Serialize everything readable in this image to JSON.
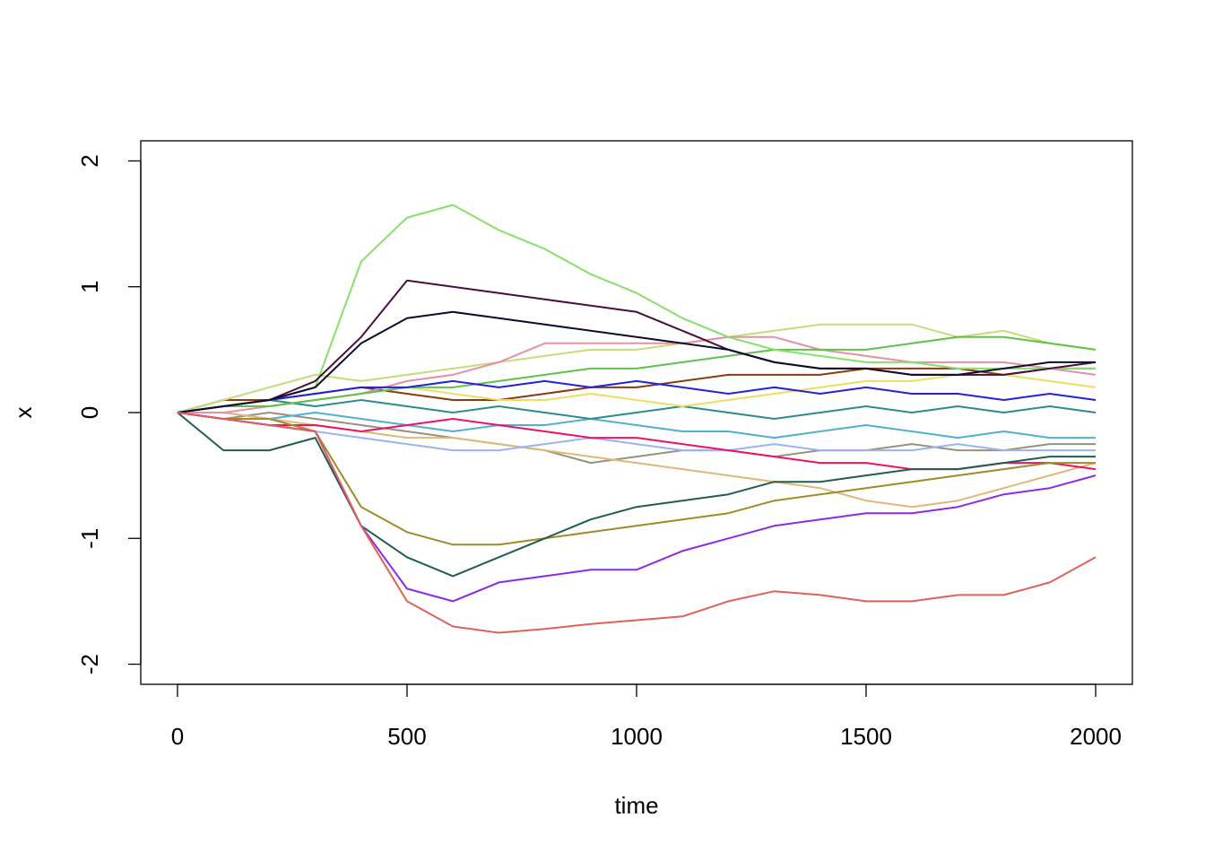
{
  "chart_data": {
    "type": "line",
    "x_label": "time",
    "y_label": "x",
    "x": [
      0,
      100,
      200,
      300,
      400,
      500,
      600,
      700,
      800,
      900,
      1000,
      1100,
      1200,
      1300,
      1400,
      1500,
      1600,
      1700,
      1800,
      1900,
      2000
    ],
    "xlim": [
      -80,
      2080
    ],
    "xticks": [
      0,
      500,
      1000,
      1500,
      2000
    ],
    "ylim": [
      -2.16,
      2.16
    ],
    "yticks": [
      -2,
      -1,
      0,
      1,
      2
    ],
    "series": [
      {
        "color": "#999080",
        "values": [
          0,
          -0.05,
          0,
          -0.05,
          -0.1,
          -0.15,
          -0.2,
          -0.25,
          -0.3,
          -0.4,
          -0.35,
          -0.3,
          -0.3,
          -0.35,
          -0.3,
          -0.3,
          -0.25,
          -0.3,
          -0.3,
          -0.25,
          -0.25
        ]
      },
      {
        "color": "#50b0d0",
        "values": [
          0,
          0,
          -0.05,
          0,
          -0.05,
          -0.1,
          -0.15,
          -0.1,
          -0.1,
          -0.05,
          -0.1,
          -0.15,
          -0.15,
          -0.2,
          -0.15,
          -0.1,
          -0.15,
          -0.2,
          -0.15,
          -0.2,
          -0.2
        ]
      },
      {
        "color": "#2e8b8b",
        "values": [
          0,
          0.05,
          0.1,
          0.05,
          0.1,
          0.05,
          0,
          0.05,
          0,
          -0.05,
          0,
          0.05,
          0,
          -0.05,
          0,
          0.05,
          0,
          0.05,
          0,
          0.05,
          0
        ]
      },
      {
        "color": "#8b3a10",
        "values": [
          0,
          0.1,
          0.1,
          0.15,
          0.2,
          0.15,
          0.1,
          0.1,
          0.15,
          0.2,
          0.2,
          0.25,
          0.3,
          0.3,
          0.3,
          0.35,
          0.35,
          0.35,
          0.3,
          0.35,
          0.35
        ]
      },
      {
        "color": "#e8e060",
        "values": [
          0,
          0.05,
          0.05,
          0.1,
          0.15,
          0.2,
          0.15,
          0.1,
          0.1,
          0.15,
          0.1,
          0.05,
          0.1,
          0.15,
          0.2,
          0.25,
          0.25,
          0.3,
          0.3,
          0.25,
          0.2
        ]
      },
      {
        "color": "#e0b878",
        "values": [
          0,
          0,
          -0.05,
          -0.1,
          -0.15,
          -0.2,
          -0.2,
          -0.25,
          -0.3,
          -0.35,
          -0.4,
          -0.45,
          -0.5,
          -0.55,
          -0.6,
          -0.7,
          -0.75,
          -0.7,
          -0.6,
          -0.5,
          -0.4
        ]
      },
      {
        "color": "#9ab4f0",
        "values": [
          0,
          -0.05,
          -0.1,
          -0.15,
          -0.2,
          -0.25,
          -0.3,
          -0.3,
          -0.25,
          -0.2,
          -0.25,
          -0.3,
          -0.3,
          -0.25,
          -0.3,
          -0.3,
          -0.3,
          -0.25,
          -0.3,
          -0.3,
          -0.3
        ]
      },
      {
        "color": "#c5dc7a",
        "values": [
          0,
          0.1,
          0.2,
          0.3,
          0.25,
          0.3,
          0.35,
          0.4,
          0.45,
          0.5,
          0.5,
          0.55,
          0.6,
          0.65,
          0.7,
          0.7,
          0.7,
          0.6,
          0.65,
          0.55,
          0.5
        ]
      },
      {
        "color": "#e58fa8",
        "values": [
          0,
          0,
          0.05,
          0.1,
          0.15,
          0.25,
          0.3,
          0.4,
          0.55,
          0.55,
          0.55,
          0.55,
          0.6,
          0.6,
          0.5,
          0.45,
          0.4,
          0.4,
          0.4,
          0.35,
          0.3
        ]
      },
      {
        "color": "#5ec24a",
        "values": [
          0,
          0.05,
          0.05,
          0.1,
          0.15,
          0.2,
          0.2,
          0.25,
          0.3,
          0.35,
          0.35,
          0.4,
          0.45,
          0.5,
          0.5,
          0.5,
          0.55,
          0.6,
          0.6,
          0.55,
          0.5
        ]
      },
      {
        "color": "#2222dd",
        "values": [
          0,
          0.05,
          0.1,
          0.15,
          0.2,
          0.2,
          0.25,
          0.2,
          0.25,
          0.2,
          0.25,
          0.2,
          0.15,
          0.2,
          0.15,
          0.2,
          0.15,
          0.15,
          0.1,
          0.15,
          0.1
        ]
      },
      {
        "color": "#ee1166",
        "values": [
          0,
          -0.05,
          -0.1,
          -0.1,
          -0.15,
          -0.1,
          -0.05,
          -0.1,
          -0.15,
          -0.2,
          -0.2,
          -0.25,
          -0.3,
          -0.35,
          -0.4,
          -0.4,
          -0.45,
          -0.45,
          -0.4,
          -0.4,
          -0.45
        ]
      },
      {
        "color": "#86e06b",
        "values": [
          0,
          0.05,
          0.1,
          0.2,
          1.2,
          1.55,
          1.65,
          1.45,
          1.3,
          1.1,
          0.95,
          0.75,
          0.6,
          0.5,
          0.45,
          0.4,
          0.4,
          0.35,
          0.35,
          0.35,
          0.35
        ]
      },
      {
        "color": "#4a0f3f",
        "values": [
          0,
          0.05,
          0.1,
          0.25,
          0.6,
          1.05,
          1.0,
          0.95,
          0.9,
          0.85,
          0.8,
          0.65,
          0.5,
          0.4,
          0.35,
          0.35,
          0.3,
          0.3,
          0.3,
          0.35,
          0.4
        ]
      },
      {
        "color": "#0f0c2e",
        "values": [
          0,
          0.05,
          0.1,
          0.2,
          0.55,
          0.75,
          0.8,
          0.75,
          0.7,
          0.65,
          0.6,
          0.55,
          0.5,
          0.4,
          0.35,
          0.35,
          0.3,
          0.3,
          0.35,
          0.4,
          0.4
        ]
      },
      {
        "color": "#a08a2a",
        "values": [
          0,
          -0.05,
          -0.05,
          -0.15,
          -0.75,
          -0.95,
          -1.05,
          -1.05,
          -1.0,
          -0.95,
          -0.9,
          -0.85,
          -0.8,
          -0.7,
          -0.65,
          -0.6,
          -0.55,
          -0.5,
          -0.45,
          -0.4,
          -0.4
        ]
      },
      {
        "color": "#1f5e4f",
        "values": [
          0,
          -0.3,
          -0.3,
          -0.2,
          -0.9,
          -1.15,
          -1.3,
          -1.15,
          -1.0,
          -0.85,
          -0.75,
          -0.7,
          -0.65,
          -0.55,
          -0.55,
          -0.5,
          -0.45,
          -0.45,
          -0.4,
          -0.35,
          -0.35
        ]
      },
      {
        "color": "#8b2be8",
        "values": [
          0,
          -0.05,
          -0.1,
          -0.15,
          -0.9,
          -1.4,
          -1.5,
          -1.35,
          -1.3,
          -1.25,
          -1.25,
          -1.1,
          -1.0,
          -0.9,
          -0.85,
          -0.8,
          -0.8,
          -0.75,
          -0.65,
          -0.6,
          -0.5
        ]
      },
      {
        "color": "#e0605a",
        "values": [
          0,
          -0.05,
          -0.1,
          -0.15,
          -0.9,
          -1.5,
          -1.7,
          -1.75,
          -1.72,
          -1.68,
          -1.65,
          -1.62,
          -1.5,
          -1.42,
          -1.45,
          -1.5,
          -1.5,
          -1.45,
          -1.45,
          -1.35,
          -1.15
        ]
      }
    ]
  }
}
